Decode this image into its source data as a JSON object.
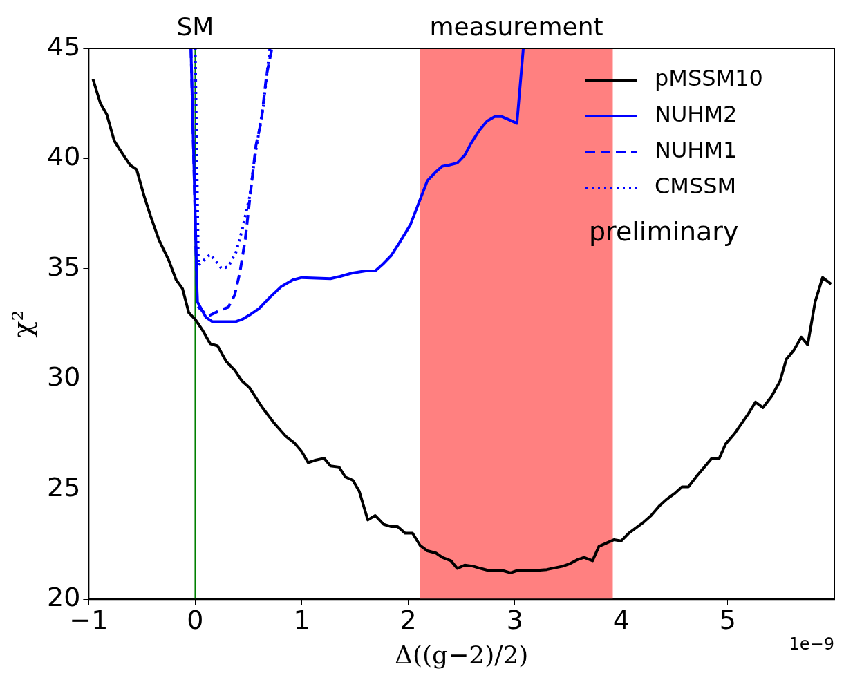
{
  "chart_data": {
    "type": "line",
    "xlabel": "Δ((g−2)/2)",
    "ylabel": "χ²",
    "xlim": [
      -1,
      6
    ],
    "ylim": [
      20,
      45
    ],
    "xticks": [
      -1,
      0,
      1,
      2,
      3,
      4,
      5
    ],
    "yticks": [
      20,
      25,
      30,
      35,
      40,
      45
    ],
    "grid": false,
    "legend": "top right",
    "marker": "none",
    "ref_lines": [
      {
        "axis": "x",
        "value": 0,
        "label": "SM",
        "color": "#008000"
      }
    ],
    "bands": [
      {
        "axis": "x",
        "from": 2.11,
        "to": 3.92,
        "label": "measurement",
        "color": "#ff8080"
      }
    ],
    "annotations": [
      "preliminary",
      "1e−9"
    ],
    "series": [
      {
        "name": "pMSSM10",
        "color": "#000000",
        "line_style": "solid",
        "x": [
          -0.96,
          -0.89,
          -0.83,
          -0.76,
          -0.68,
          -0.61,
          -0.55,
          -0.48,
          -0.42,
          -0.34,
          -0.25,
          -0.18,
          -0.12,
          -0.06,
          0,
          0.07,
          0.14,
          0.21,
          0.29,
          0.37,
          0.44,
          0.51,
          0.63,
          0.74,
          0.85,
          0.93,
          1.0,
          1.06,
          1.12,
          1.21,
          1.27,
          1.35,
          1.41,
          1.48,
          1.54,
          1.62,
          1.69,
          1.77,
          1.84,
          1.9,
          1.97,
          2.04,
          2.11,
          2.18,
          2.26,
          2.32,
          2.4,
          2.46,
          2.53,
          2.61,
          2.68,
          2.76,
          2.89,
          2.96,
          3.02,
          3.09,
          3.17,
          3.3,
          3.45,
          3.51,
          3.59,
          3.65,
          3.73,
          3.79,
          3.86,
          3.93,
          4.0,
          4.07,
          4.21,
          4.28,
          4.36,
          4.43,
          4.5,
          4.57,
          4.63,
          4.71,
          4.78,
          4.85,
          4.92,
          4.98,
          5.06,
          5.19,
          5.26,
          5.33,
          5.41,
          5.49,
          5.55,
          5.62,
          5.69,
          5.75,
          5.82,
          5.89,
          5.97
        ],
        "values": [
          43.6,
          42.5,
          42.0,
          40.8,
          40.2,
          39.7,
          39.5,
          38.3,
          37.4,
          36.3,
          35.4,
          34.5,
          34.1,
          33.0,
          32.7,
          32.2,
          31.6,
          31.5,
          30.8,
          30.4,
          29.9,
          29.6,
          28.7,
          28.0,
          27.4,
          27.1,
          26.7,
          26.2,
          26.3,
          26.4,
          26.05,
          26.0,
          25.55,
          25.4,
          24.9,
          23.6,
          23.8,
          23.4,
          23.3,
          23.3,
          23.0,
          23.0,
          22.45,
          22.2,
          22.1,
          21.9,
          21.75,
          21.4,
          21.55,
          21.5,
          21.4,
          21.3,
          21.3,
          21.2,
          21.3,
          21.3,
          21.3,
          21.35,
          21.5,
          21.6,
          21.8,
          21.9,
          21.75,
          22.4,
          22.55,
          22.7,
          22.65,
          23.0,
          23.5,
          23.8,
          24.25,
          24.55,
          24.8,
          25.1,
          25.1,
          25.6,
          26.0,
          26.4,
          26.4,
          27.05,
          27.5,
          28.4,
          28.95,
          28.7,
          29.2,
          29.9,
          30.9,
          31.3,
          31.9,
          31.55,
          33.5,
          34.6,
          34.3
        ]
      },
      {
        "name": "NUHM2",
        "color": "#0000ff",
        "line_style": "solid",
        "x": [
          -0.04,
          0.02,
          0.1,
          0.16,
          0.38,
          0.44,
          0.51,
          0.6,
          0.7,
          0.81,
          0.92,
          1.0,
          1.27,
          1.36,
          1.47,
          1.6,
          1.69,
          1.76,
          1.84,
          1.92,
          2.02,
          2.18,
          2.26,
          2.32,
          2.38,
          2.46,
          2.53,
          2.59,
          2.67,
          2.74,
          2.81,
          2.88,
          3.02,
          3.08
        ],
        "values": [
          45,
          33.5,
          32.8,
          32.6,
          32.6,
          32.7,
          32.9,
          33.2,
          33.7,
          34.2,
          34.5,
          34.6,
          34.55,
          34.65,
          34.8,
          34.9,
          34.9,
          35.2,
          35.6,
          36.2,
          37.0,
          39.0,
          39.4,
          39.65,
          39.7,
          39.8,
          40.15,
          40.7,
          41.3,
          41.7,
          41.9,
          41.9,
          41.6,
          45
        ]
      },
      {
        "name": "NUHM1",
        "color": "#0000ff",
        "line_style": "dashed",
        "x": [
          -0.04,
          0.02,
          0.12,
          0.25,
          0.31,
          0.37,
          0.42,
          0.47,
          0.52,
          0.57,
          0.62,
          0.67,
          0.72
        ],
        "values": [
          45,
          33.3,
          32.85,
          33.15,
          33.25,
          33.8,
          34.85,
          36.35,
          38.5,
          40.6,
          41.7,
          43.8,
          45
        ]
      },
      {
        "name": "CMSSM",
        "color": "#0000ff",
        "line_style": "dotted",
        "x": [
          0.0,
          0.03,
          0.14,
          0.25,
          0.31,
          0.38,
          0.44,
          0.51,
          0.57,
          0.64,
          0.7
        ],
        "values": [
          45,
          35.15,
          35.65,
          35.0,
          35.1,
          35.7,
          36.75,
          38.25,
          40.4,
          42.4,
          45
        ]
      }
    ]
  }
}
